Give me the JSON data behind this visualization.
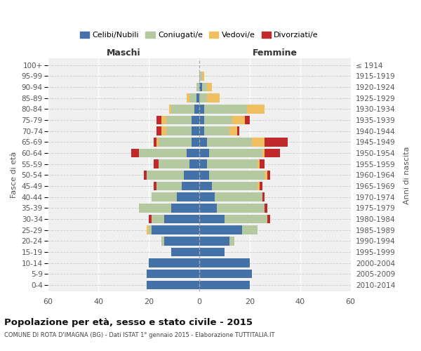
{
  "age_groups": [
    "0-4",
    "5-9",
    "10-14",
    "15-19",
    "20-24",
    "25-29",
    "30-34",
    "35-39",
    "40-44",
    "45-49",
    "50-54",
    "55-59",
    "60-64",
    "65-69",
    "70-74",
    "75-79",
    "80-84",
    "85-89",
    "90-94",
    "95-99",
    "100+"
  ],
  "birth_years": [
    "2010-2014",
    "2005-2009",
    "2000-2004",
    "1995-1999",
    "1990-1994",
    "1985-1989",
    "1980-1984",
    "1975-1979",
    "1970-1974",
    "1965-1969",
    "1960-1964",
    "1955-1959",
    "1950-1954",
    "1945-1949",
    "1940-1944",
    "1935-1939",
    "1930-1934",
    "1925-1929",
    "1920-1924",
    "1915-1919",
    "≤ 1914"
  ],
  "colors": {
    "celibi": "#4472a8",
    "coniugati": "#b5c9a0",
    "vedovi": "#f0c060",
    "divorziati": "#c0282a"
  },
  "maschi": {
    "celibi": [
      21,
      21,
      20,
      11,
      14,
      19,
      14,
      11,
      9,
      7,
      6,
      4,
      5,
      3,
      3,
      3,
      2,
      1,
      0,
      0,
      0
    ],
    "coniugati": [
      0,
      0,
      0,
      0,
      1,
      1,
      5,
      13,
      10,
      10,
      15,
      12,
      19,
      13,
      10,
      10,
      9,
      3,
      1,
      0,
      0
    ],
    "vedovi": [
      0,
      0,
      0,
      0,
      0,
      1,
      0,
      0,
      0,
      0,
      0,
      0,
      0,
      1,
      2,
      2,
      1,
      1,
      0,
      0,
      0
    ],
    "divorziati": [
      0,
      0,
      0,
      0,
      0,
      0,
      1,
      0,
      0,
      1,
      1,
      2,
      3,
      1,
      2,
      2,
      0,
      0,
      0,
      0,
      0
    ]
  },
  "femmine": {
    "celibi": [
      20,
      21,
      20,
      10,
      12,
      17,
      10,
      7,
      6,
      5,
      4,
      3,
      4,
      3,
      2,
      2,
      2,
      0,
      1,
      0,
      0
    ],
    "coniugati": [
      0,
      0,
      0,
      0,
      2,
      6,
      17,
      19,
      19,
      18,
      22,
      20,
      21,
      18,
      10,
      11,
      17,
      3,
      2,
      1,
      0
    ],
    "vedovi": [
      0,
      0,
      0,
      0,
      0,
      0,
      0,
      0,
      0,
      1,
      1,
      1,
      1,
      5,
      3,
      5,
      7,
      5,
      2,
      1,
      0
    ],
    "divorziati": [
      0,
      0,
      0,
      0,
      0,
      0,
      1,
      1,
      1,
      1,
      1,
      2,
      6,
      9,
      1,
      2,
      0,
      0,
      0,
      0,
      0
    ]
  },
  "xlim": 60,
  "title": "Popolazione per età, sesso e stato civile - 2015",
  "subtitle": "COMUNE DI ROTA D'IMAGNA (BG) - Dati ISTAT 1° gennaio 2015 - Elaborazione TUTTITALIA.IT",
  "xlabel_left": "Maschi",
  "xlabel_right": "Femmine",
  "ylabel_left": "Fasce di età",
  "ylabel_right": "Anni di nascita",
  "legend_labels": [
    "Celibi/Nubili",
    "Coniugati/e",
    "Vedovi/e",
    "Divorziati/e"
  ],
  "background_color": "#f0f0f0",
  "bar_height": 0.8
}
